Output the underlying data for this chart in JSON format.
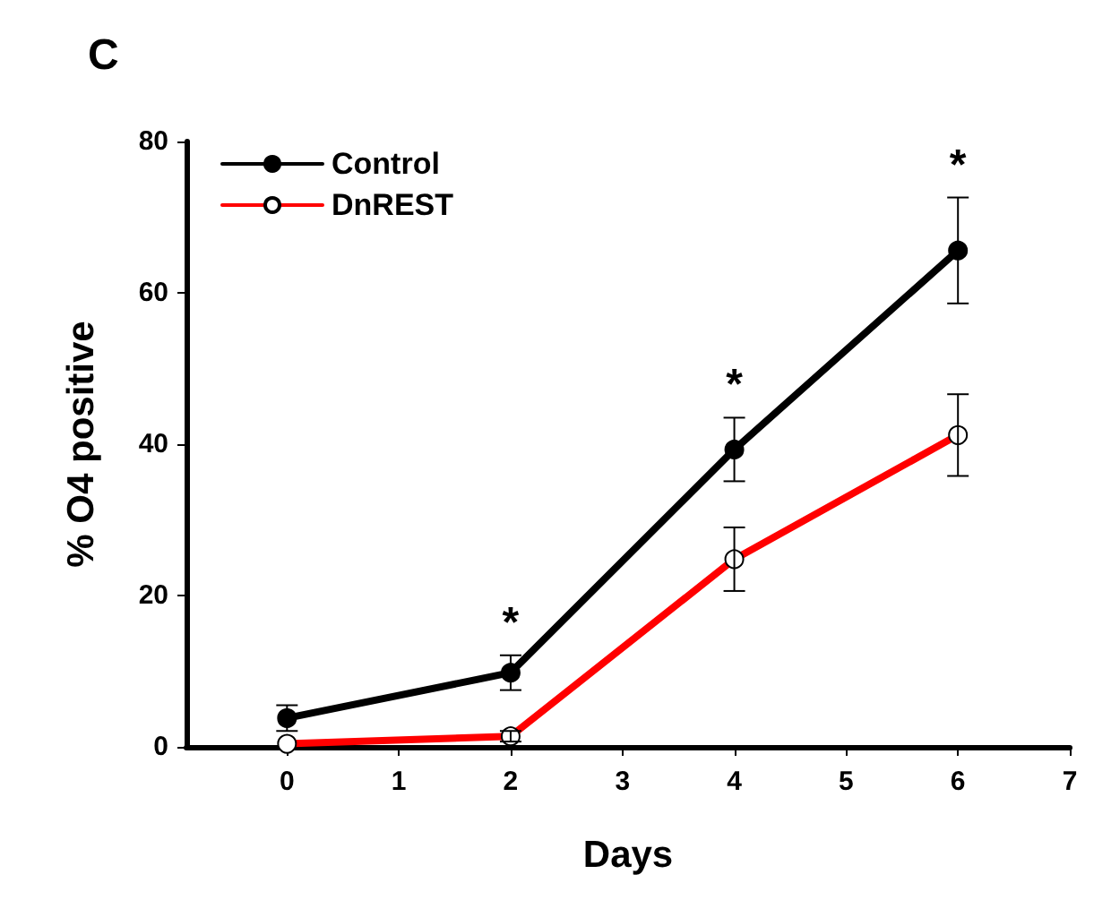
{
  "chart_data": {
    "type": "line",
    "title": "C",
    "xlabel": "Days",
    "ylabel": "% O4 positive",
    "xlim": [
      -0.9,
      7
    ],
    "xticks": [
      0,
      1,
      2,
      3,
      4,
      5,
      6,
      7
    ],
    "ylim": [
      0,
      80
    ],
    "yticks": [
      0,
      20,
      40,
      60,
      80
    ],
    "x": [
      0,
      2,
      4,
      6
    ],
    "series": [
      {
        "name": "Control",
        "color": "#000000",
        "values": [
          3.8,
          9.8,
          39.3,
          65.6
        ],
        "errors": [
          1.7,
          2.3,
          4.2,
          7.0
        ],
        "marker": "circle"
      },
      {
        "name": "DnREST",
        "color": "#ff0000",
        "values": [
          0.4,
          1.4,
          24.8,
          41.2
        ],
        "errors": [
          null,
          0.7,
          4.2,
          5.4
        ],
        "marker": "circle"
      }
    ],
    "annotations": [
      {
        "text": "*",
        "x": 2,
        "y": 9.8
      },
      {
        "text": "*",
        "x": 4,
        "y": 39.3
      },
      {
        "text": "*",
        "x": 6,
        "y": 65.6
      }
    ],
    "legend": "top left",
    "grid": false,
    "line_style": "solid"
  }
}
